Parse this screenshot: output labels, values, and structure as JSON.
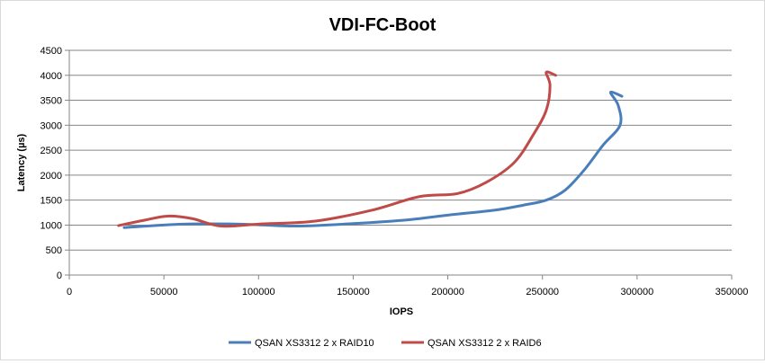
{
  "chart_data": {
    "type": "line",
    "title": "VDI-FC-Boot",
    "xlabel": "IOPS",
    "ylabel": "Latency (µs)",
    "xlim": [
      0,
      350000
    ],
    "ylim": [
      0,
      4500
    ],
    "x_ticks": [
      "0",
      "50000",
      "100000",
      "150000",
      "200000",
      "250000",
      "300000",
      "350000"
    ],
    "y_ticks": [
      "0",
      "500",
      "1000",
      "1500",
      "2000",
      "2500",
      "3000",
      "3500",
      "4000",
      "4500"
    ],
    "grid": "horizontal",
    "legend_position": "bottom",
    "series": [
      {
        "name": "QSAN XS3312 2 x RAID10",
        "color": "#4a7ebb",
        "points": [
          [
            29000,
            950
          ],
          [
            60000,
            1020
          ],
          [
            90000,
            1020
          ],
          [
            120000,
            980
          ],
          [
            150000,
            1030
          ],
          [
            180000,
            1110
          ],
          [
            200000,
            1200
          ],
          [
            225000,
            1300
          ],
          [
            240000,
            1400
          ],
          [
            252000,
            1500
          ],
          [
            262000,
            1700
          ],
          [
            272000,
            2100
          ],
          [
            282000,
            2600
          ],
          [
            291000,
            3000
          ],
          [
            290000,
            3400
          ],
          [
            286000,
            3660
          ],
          [
            292000,
            3580
          ]
        ]
      },
      {
        "name": "QSAN XS3312 2 x RAID6",
        "color": "#be4b48",
        "points": [
          [
            26000,
            990
          ],
          [
            40000,
            1100
          ],
          [
            52000,
            1180
          ],
          [
            65000,
            1130
          ],
          [
            80000,
            980
          ],
          [
            100000,
            1020
          ],
          [
            130000,
            1080
          ],
          [
            160000,
            1300
          ],
          [
            185000,
            1570
          ],
          [
            205000,
            1630
          ],
          [
            220000,
            1850
          ],
          [
            235000,
            2250
          ],
          [
            245000,
            2800
          ],
          [
            252000,
            3300
          ],
          [
            254000,
            3800
          ],
          [
            252000,
            4060
          ],
          [
            257000,
            4000
          ]
        ]
      }
    ]
  }
}
